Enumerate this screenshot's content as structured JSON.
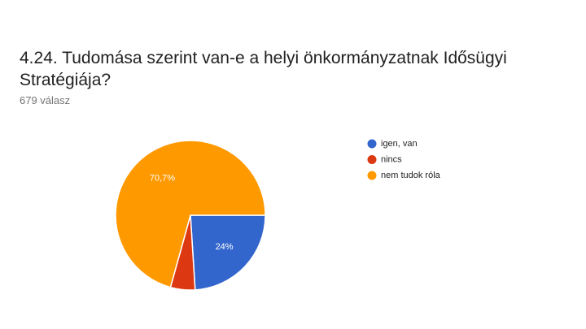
{
  "chart_data": {
    "type": "pie",
    "title": "4.24. Tudomása szerint van-e a helyi önkormányzatnak Idősügyi Stratégiája?",
    "subtitle": "679 válasz",
    "categories": [
      "igen, van",
      "nincs",
      "nem tudok róla"
    ],
    "values": [
      24,
      5.3,
      70.7
    ],
    "value_labels": [
      "24%",
      null,
      "70,7%"
    ],
    "colors": [
      "#3366cc",
      "#dc3912",
      "#ff9900"
    ],
    "legend": "right"
  }
}
